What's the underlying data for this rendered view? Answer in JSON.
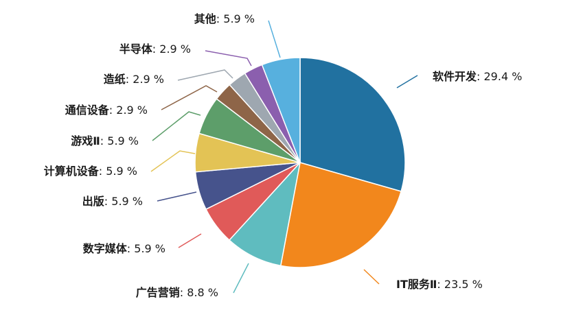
{
  "chart_data": {
    "type": "pie",
    "start_angle_deg": 0,
    "direction": "clockwise",
    "slices": [
      {
        "label": "软件开发",
        "value": 29.4,
        "color": "#2171a0"
      },
      {
        "label": "IT服务Ⅱ",
        "value": 23.5,
        "color": "#f2871c"
      },
      {
        "label": "广告营销",
        "value": 8.8,
        "color": "#5fbcbf"
      },
      {
        "label": "数字媒体",
        "value": 5.9,
        "color": "#e05a59"
      },
      {
        "label": "出版",
        "value": 5.9,
        "color": "#46538c"
      },
      {
        "label": "计算机设备",
        "value": 5.9,
        "color": "#e3c355"
      },
      {
        "label": "游戏Ⅱ",
        "value": 5.9,
        "color": "#5d9e6a"
      },
      {
        "label": "通信设备",
        "value": 2.9,
        "color": "#8e6548"
      },
      {
        "label": "造纸",
        "value": 2.9,
        "color": "#9ea7b0"
      },
      {
        "label": "半导体",
        "value": 2.9,
        "color": "#8b5fae"
      },
      {
        "label": "其他",
        "value": 5.9,
        "color": "#57b0de"
      }
    ],
    "value_suffix": " %",
    "label_separator": ": "
  }
}
